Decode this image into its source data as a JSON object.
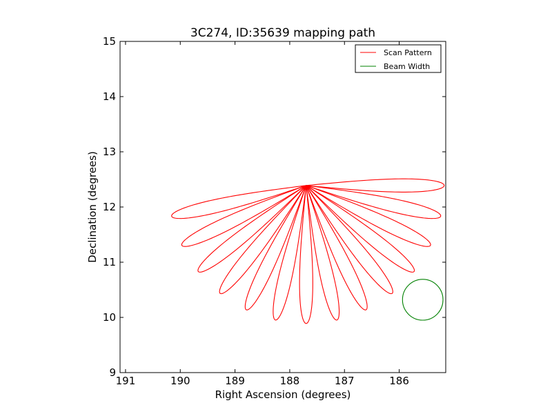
{
  "chart_data": {
    "type": "line",
    "title": "3C274, ID:35639 mapping path",
    "xlabel": "Right Ascension (degrees)",
    "ylabel": "Declination (degrees)",
    "xlim": [
      191.1,
      185.15
    ],
    "ylim": [
      9,
      15
    ],
    "xticks": [
      191,
      190,
      189,
      188,
      187,
      186
    ],
    "yticks": [
      9,
      10,
      11,
      12,
      13,
      14,
      15
    ],
    "grid": false,
    "legend_position": "top-right",
    "series": [
      {
        "name": "Scan Pattern",
        "color": "#ff0000",
        "center": [
          187.7,
          12.39
        ],
        "num_petals": 14,
        "petal_length_deg": 2.5,
        "petal_width_deg": 0.12,
        "petal_orientations_deg": [
          0,
          12.86,
          25.71,
          38.57,
          51.43,
          64.29,
          77.14,
          90,
          102.86,
          115.71,
          128.57,
          141.43,
          154.29,
          167.14
        ]
      },
      {
        "name": "Beam Width",
        "color": "#008000",
        "center": [
          185.57,
          10.32
        ],
        "radius_deg": 0.37
      }
    ]
  }
}
